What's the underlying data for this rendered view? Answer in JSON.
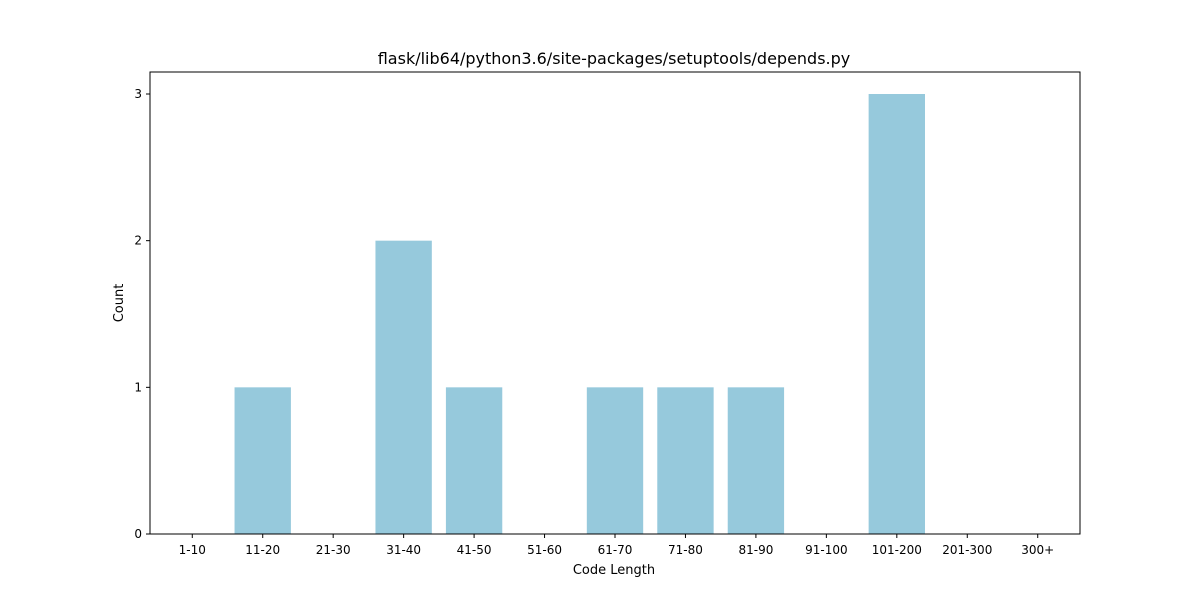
{
  "chart_data": {
    "type": "bar",
    "title": "flask/lib64/python3.6/site-packages/setuptools/depends.py",
    "xlabel": "Code Length",
    "ylabel": "Count",
    "categories": [
      "1-10",
      "11-20",
      "21-30",
      "31-40",
      "41-50",
      "51-60",
      "61-70",
      "71-80",
      "81-90",
      "91-100",
      "101-200",
      "201-300",
      "300+"
    ],
    "values": [
      0,
      1,
      0,
      2,
      1,
      0,
      1,
      1,
      1,
      0,
      3,
      0,
      0
    ],
    "ylim": [
      0,
      3.15
    ],
    "yticks": [
      0,
      1,
      2,
      3
    ],
    "grid": false,
    "bar_color": "#96c9dc"
  }
}
